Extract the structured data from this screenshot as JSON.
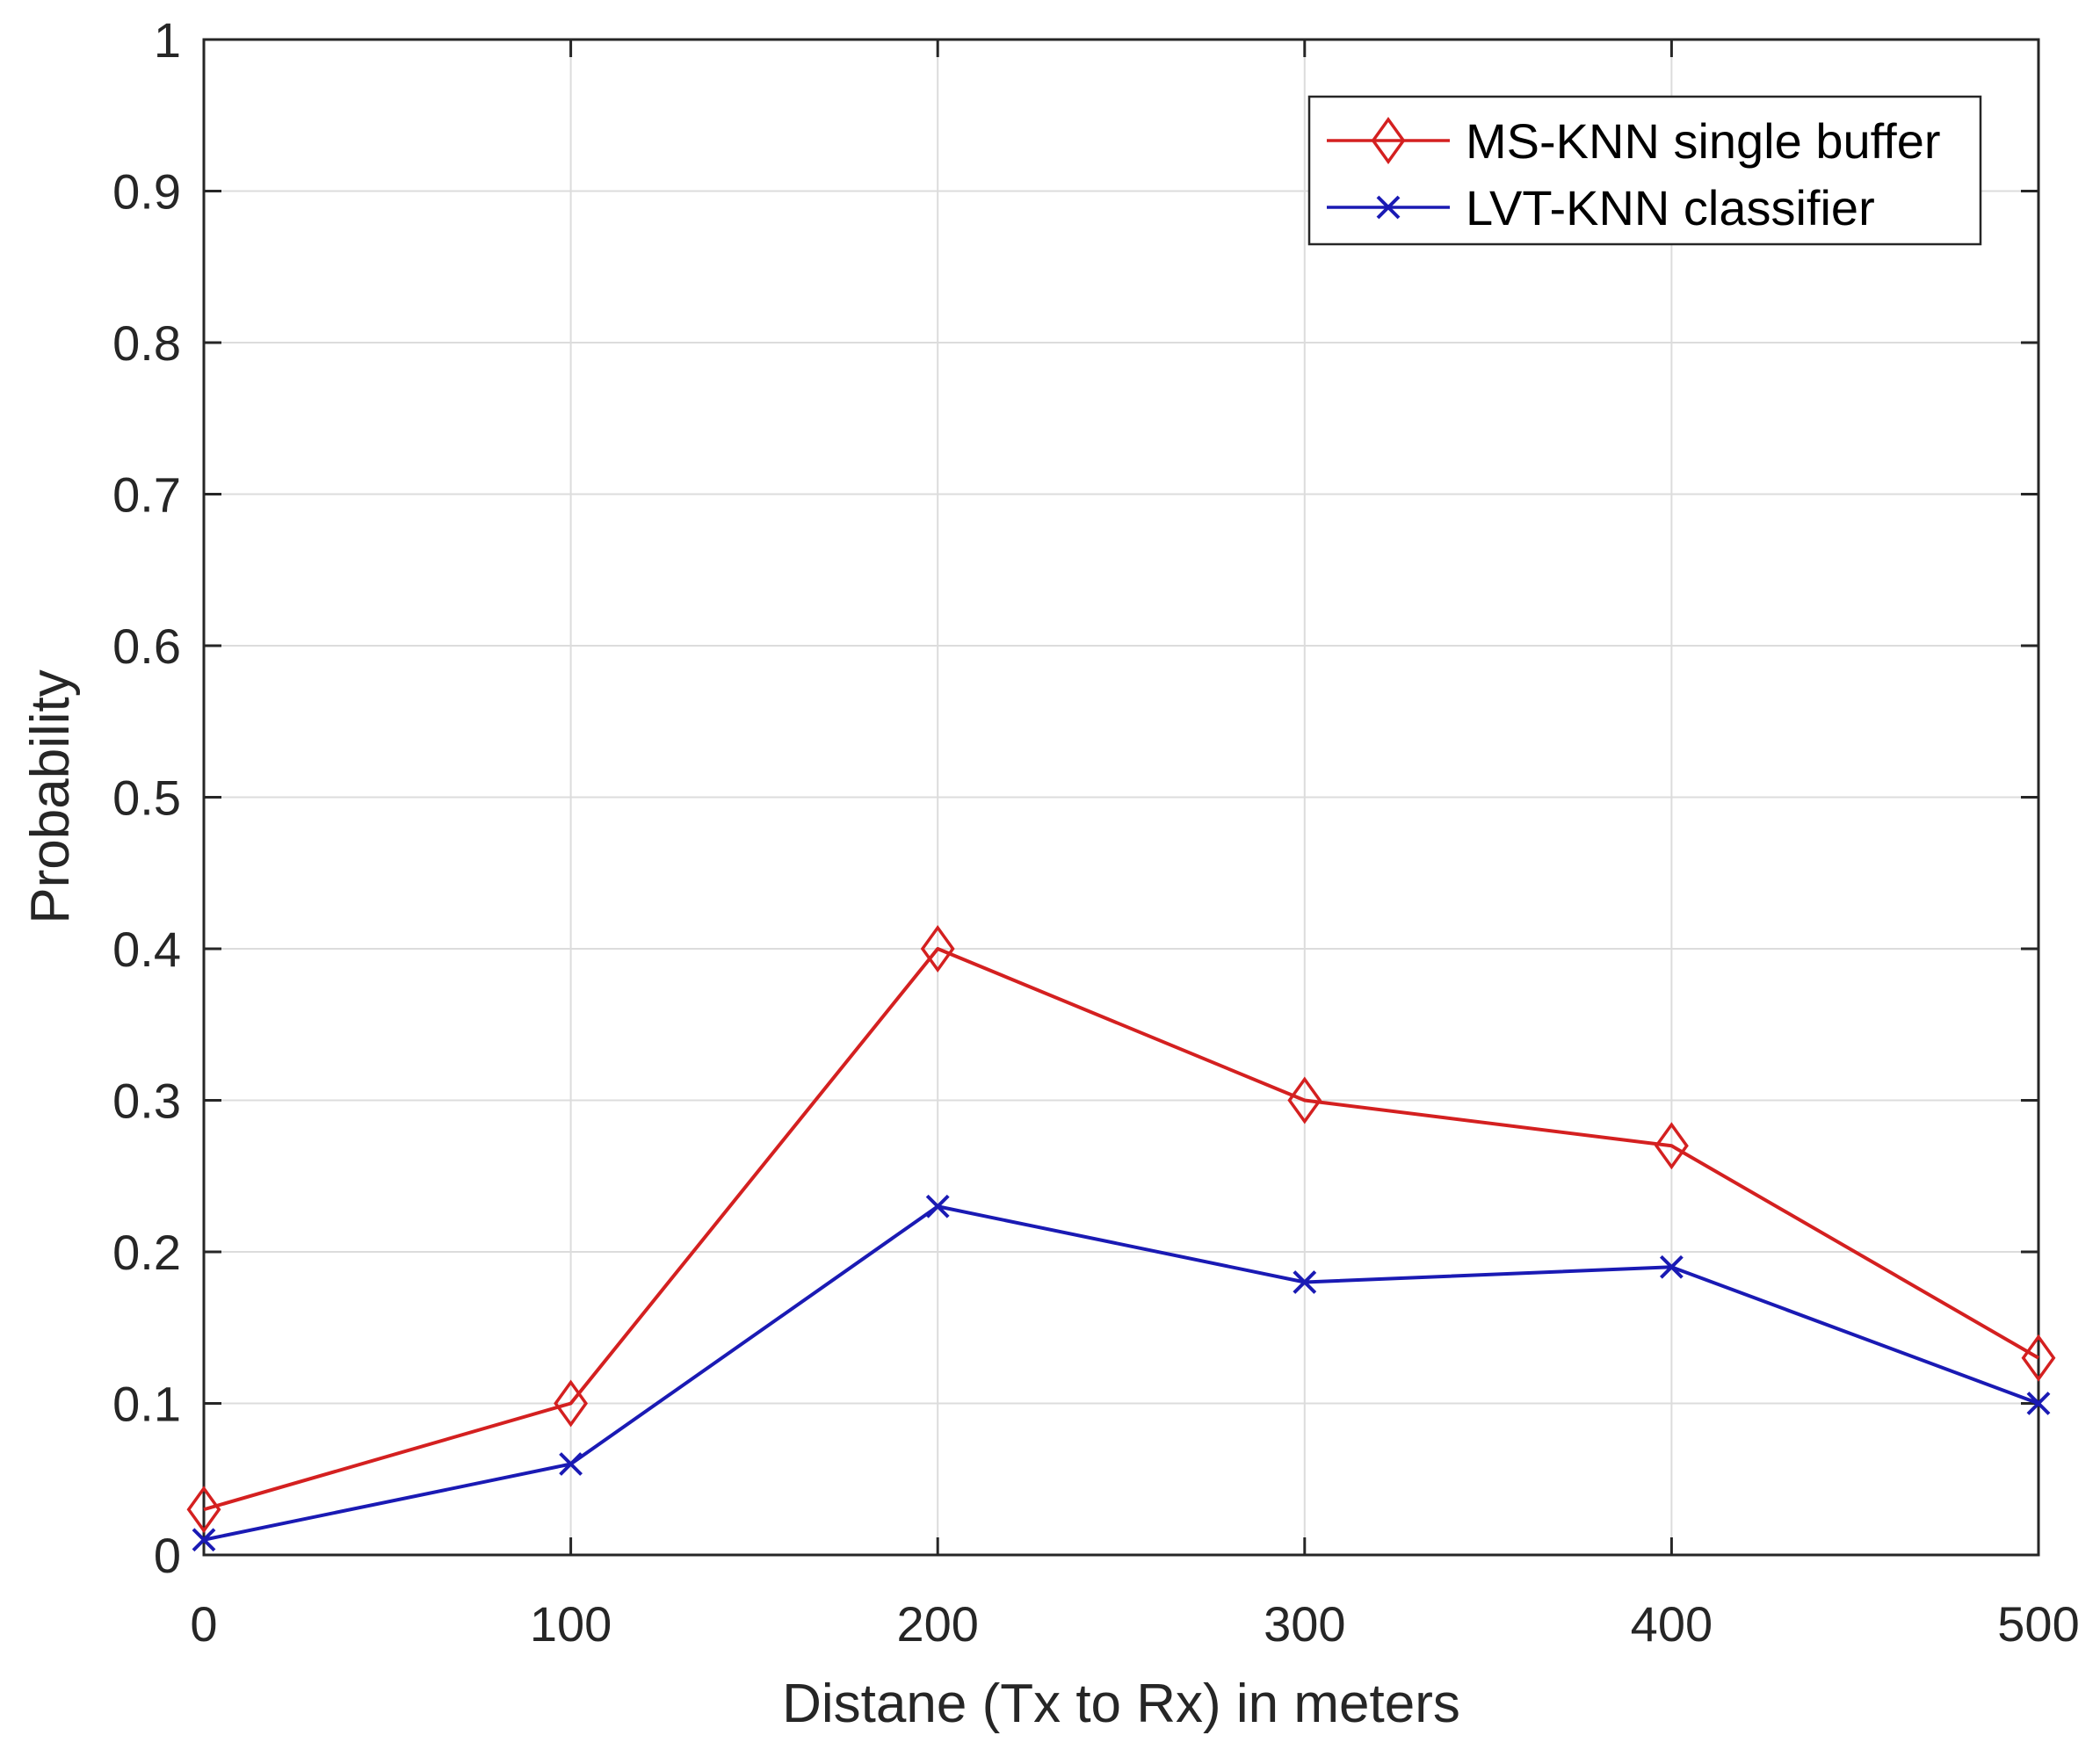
{
  "chart_data": {
    "type": "line",
    "title": "",
    "xlabel": "Distane (Tx to Rx) in meters",
    "ylabel": "Probability",
    "x": [
      0,
      100,
      200,
      300,
      400,
      500
    ],
    "xticks": [
      "0",
      "100",
      "200",
      "300",
      "400",
      "500"
    ],
    "yticks": [
      "0",
      "0.1",
      "0.2",
      "0.3",
      "0.4",
      "0.5",
      "0.6",
      "0.7",
      "0.8",
      "0.9",
      "1"
    ],
    "xlim": [
      0,
      500
    ],
    "ylim": [
      0,
      1
    ],
    "grid": true,
    "legend_position": "top-right",
    "series": [
      {
        "name": "MS-KNN single buffer",
        "color": "#d42020",
        "marker": "diamond",
        "values": [
          0.03,
          0.1,
          0.4,
          0.3,
          0.27,
          0.13
        ]
      },
      {
        "name": "LVT-KNN classifier",
        "color": "#1a1ab4",
        "marker": "x",
        "values": [
          0.01,
          0.06,
          0.23,
          0.18,
          0.19,
          0.1
        ]
      }
    ]
  }
}
